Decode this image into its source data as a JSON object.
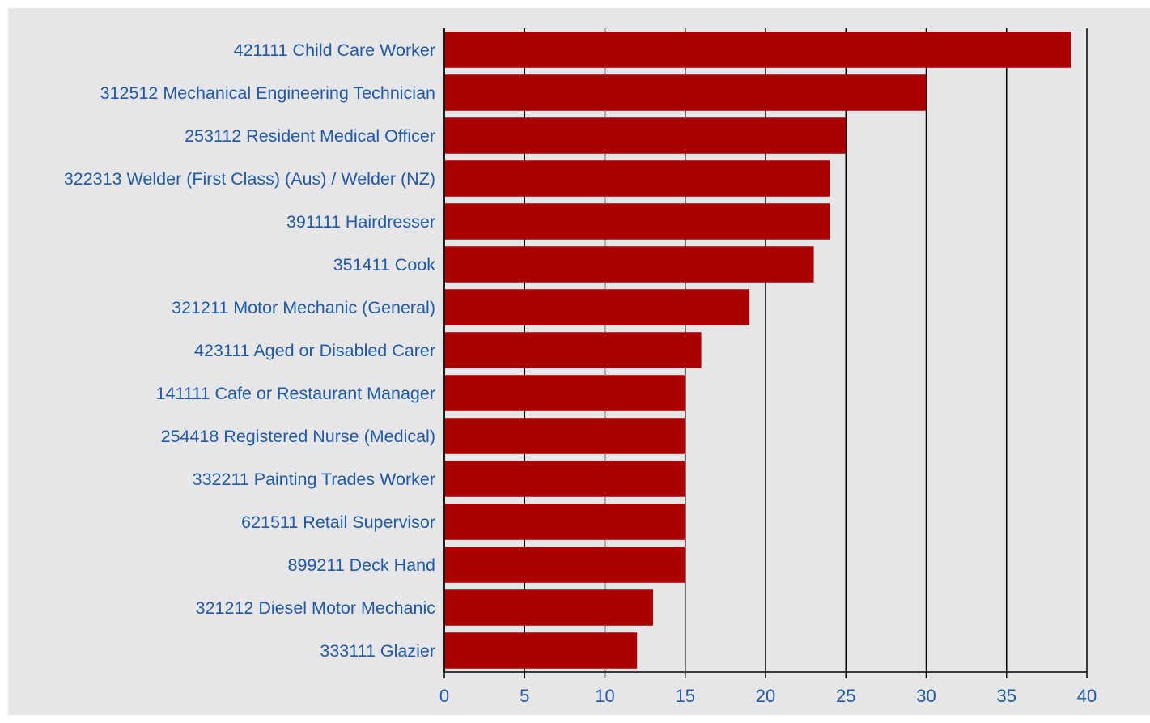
{
  "chart_data": {
    "type": "bar",
    "orientation": "horizontal",
    "categories": [
      "421111 Child Care Worker",
      "312512 Mechanical Engineering Technician",
      "253112 Resident Medical Officer",
      "322313 Welder (First Class) (Aus) / Welder (NZ)",
      "391111 Hairdresser",
      "351411 Cook",
      "321211 Motor Mechanic (General)",
      "423111 Aged or Disabled Carer",
      "141111 Cafe or Restaurant Manager",
      "254418 Registered Nurse (Medical)",
      "332211 Painting Trades Worker",
      "621511 Retail Supervisor",
      "899211 Deck Hand",
      "321212 Diesel Motor Mechanic",
      "333111 Glazier"
    ],
    "values": [
      39,
      30,
      25,
      24,
      24,
      23,
      19,
      16,
      15,
      15,
      15,
      15,
      15,
      13,
      12
    ],
    "color": "#aa0000",
    "xlim": [
      0,
      40
    ],
    "xticks": [
      0,
      5,
      10,
      15,
      20,
      25,
      30,
      35,
      40
    ],
    "grid": true
  }
}
